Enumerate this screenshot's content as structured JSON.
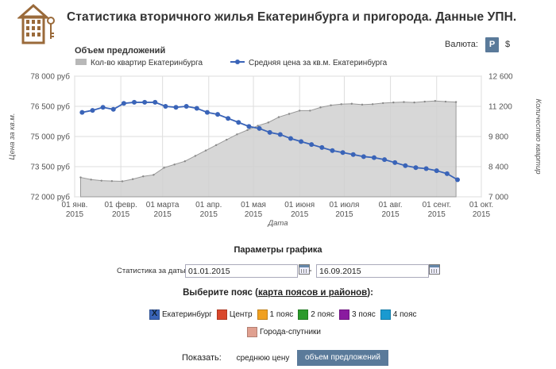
{
  "header": {
    "title": "Статистика вторичного жилья Екатеринбурга и пригорода. Данные УПН."
  },
  "currency": {
    "label": "Валюта:",
    "rub": "Р",
    "usd": "$",
    "selected": "Р"
  },
  "chart_data": {
    "type": "line",
    "title": "Объем предложений",
    "xlabel": "Дата",
    "ylabel": "Цена за кв.м.",
    "ylabel_right": "Количество квартир",
    "ylim": [
      72000,
      78000
    ],
    "ylim_right": [
      7000,
      12600
    ],
    "y_ticks": [
      "78 000 руб",
      "76 500 руб",
      "75 000 руб",
      "73 500 руб",
      "72 000 руб"
    ],
    "y_ticks_right": [
      "12 600",
      "11 200",
      "9 800",
      "8 400",
      "7 000"
    ],
    "x_ticks": [
      {
        "month": "01 янв.",
        "year": "2015"
      },
      {
        "month": "01 февр.",
        "year": "2015"
      },
      {
        "month": "01 марта",
        "year": "2015"
      },
      {
        "month": "01 апр.",
        "year": "2015"
      },
      {
        "month": "01 мая",
        "year": "2015"
      },
      {
        "month": "01 июня",
        "year": "2015"
      },
      {
        "month": "01 июля",
        "year": "2015"
      },
      {
        "month": "01 авг.",
        "year": "2015"
      },
      {
        "month": "01 сент.",
        "year": "2015"
      },
      {
        "month": "01 окт.",
        "year": "2015"
      }
    ],
    "grid": true,
    "legend_position": "top-left",
    "series": [
      {
        "name": "Кол-во квартир Екатеринбурга",
        "kind": "area",
        "axis": "right",
        "color": "#b0b0b0",
        "days": [
          4,
          11,
          18,
          25,
          32,
          39,
          46,
          53,
          60,
          67,
          74,
          81,
          88,
          95,
          102,
          109,
          116,
          123,
          130,
          137,
          144,
          151,
          158,
          165,
          172,
          179,
          186,
          193,
          200,
          207,
          214,
          221,
          228,
          235,
          242,
          249,
          256
        ],
        "values": [
          7900,
          7800,
          7750,
          7730,
          7720,
          7820,
          7950,
          8020,
          8350,
          8500,
          8650,
          8900,
          9150,
          9400,
          9650,
          9900,
          10100,
          10300,
          10450,
          10700,
          10850,
          11000,
          11000,
          11150,
          11250,
          11300,
          11320,
          11280,
          11300,
          11350,
          11380,
          11400,
          11380,
          11420,
          11450,
          11420,
          11400
        ]
      },
      {
        "name": "Средняя цена за кв.м. Екатеринбурга",
        "kind": "line",
        "axis": "left",
        "color": "#3a64b8",
        "days": [
          5,
          12,
          19,
          26,
          33,
          40,
          47,
          54,
          61,
          68,
          75,
          82,
          89,
          96,
          103,
          110,
          117,
          124,
          131,
          138,
          145,
          152,
          159,
          166,
          173,
          180,
          187,
          194,
          201,
          208,
          215,
          222,
          229,
          236,
          243,
          250,
          257
        ],
        "values": [
          76200,
          76300,
          76450,
          76350,
          76650,
          76700,
          76700,
          76700,
          76500,
          76450,
          76500,
          76400,
          76200,
          76100,
          75900,
          75700,
          75500,
          75400,
          75200,
          75100,
          74900,
          74750,
          74600,
          74450,
          74300,
          74200,
          74100,
          74000,
          73950,
          73850,
          73700,
          73550,
          73450,
          73400,
          73300,
          73150,
          72850
        ]
      }
    ]
  },
  "params": {
    "title": "Параметры графика",
    "date_label": "Статистика за даты:",
    "date_from": "01.01.2015",
    "date_to": "16.09.2015",
    "separator": "-"
  },
  "belts": {
    "title_prefix": "Выберите пояс (",
    "title_link": "карта поясов и районов",
    "title_suffix": "):",
    "items": [
      {
        "label": "Екатеринбург",
        "color": "#3a64b8",
        "checked": true
      },
      {
        "label": "Центр",
        "color": "#d9472b",
        "checked": false
      },
      {
        "label": "1 пояс",
        "color": "#f0a020",
        "checked": false
      },
      {
        "label": "2 пояс",
        "color": "#2a9a2a",
        "checked": false
      },
      {
        "label": "3 пояс",
        "color": "#8a1aa0",
        "checked": false
      },
      {
        "label": "4 пояс",
        "color": "#1a9ad0",
        "checked": false
      },
      {
        "label": "Города-спутники",
        "color": "#e0a090",
        "checked": false
      }
    ]
  },
  "show": {
    "label": "Показать:",
    "avg_price": "среднюю цену",
    "offers": "объем предложений",
    "selected": "объем предложений"
  }
}
